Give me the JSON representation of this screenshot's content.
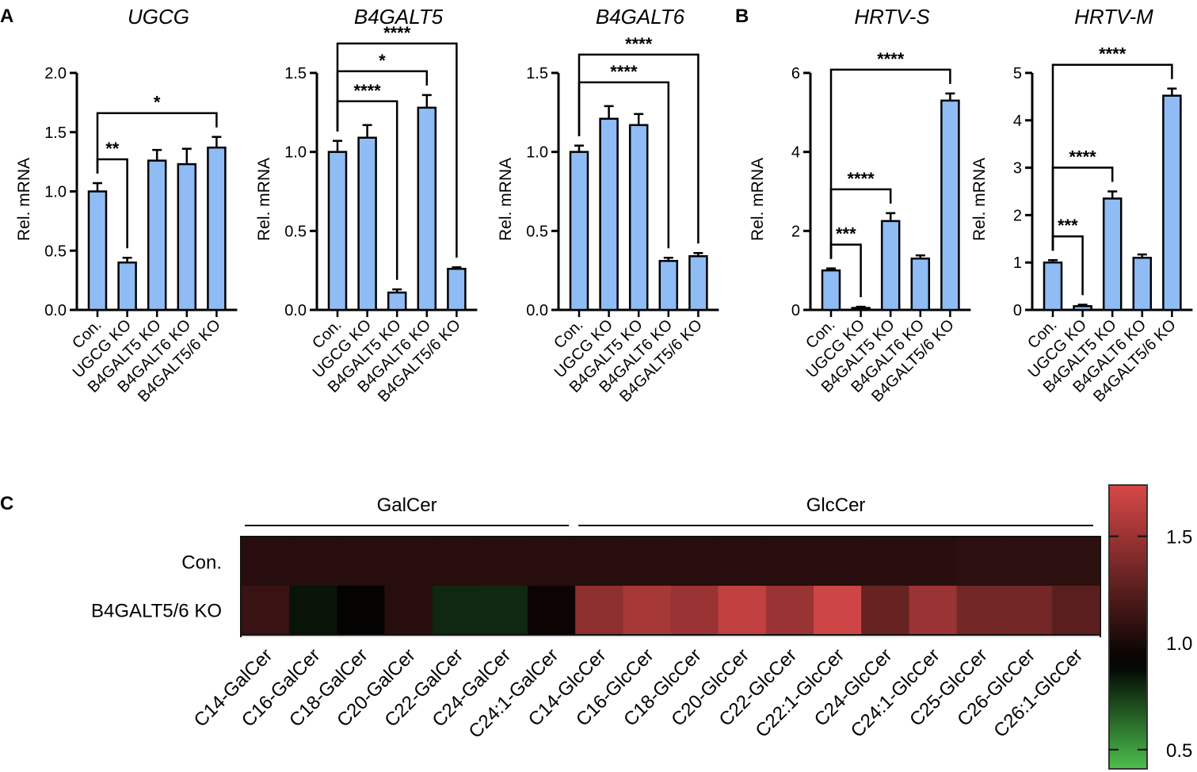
{
  "panels": [
    "A",
    "B",
    "C"
  ],
  "chart_data": [
    {
      "type": "bar",
      "title": "UGCG",
      "ylabel": "Rel. mRNA",
      "ylim": [
        0,
        2.0
      ],
      "yticks": [
        "0.0",
        "0.5",
        "1.0",
        "1.5",
        "2.0"
      ],
      "categories": [
        "Con.",
        "UGCG KO",
        "B4GALT5 KO",
        "B4GALT6 KO",
        "B4GALT5/6 KO"
      ],
      "values": [
        1.0,
        0.4,
        1.26,
        1.23,
        1.37
      ],
      "errors": [
        0.07,
        0.04,
        0.09,
        0.13,
        0.09
      ],
      "significance": [
        {
          "from": 0,
          "to": 1,
          "label": "**"
        },
        {
          "from": 0,
          "to": 4,
          "label": "*"
        }
      ],
      "bar_color": "#8fbcf5"
    },
    {
      "type": "bar",
      "title": "B4GALT5",
      "ylabel": "Rel. mRNA",
      "ylim": [
        0,
        1.5
      ],
      "yticks": [
        "0.0",
        "0.5",
        "1.0",
        "1.5"
      ],
      "categories": [
        "Con.",
        "UGCG KO",
        "B4GALT5 KO",
        "B4GALT6 KO",
        "B4GALT5/6 KO"
      ],
      "values": [
        1.0,
        1.09,
        0.11,
        1.28,
        0.26
      ],
      "errors": [
        0.07,
        0.08,
        0.02,
        0.08,
        0.01
      ],
      "significance": [
        {
          "from": 0,
          "to": 2,
          "label": "****"
        },
        {
          "from": 0,
          "to": 3,
          "label": "*"
        },
        {
          "from": 0,
          "to": 4,
          "label": "****"
        }
      ],
      "bar_color": "#8fbcf5"
    },
    {
      "type": "bar",
      "title": "B4GALT6",
      "ylabel": "Rel. mRNA",
      "ylim": [
        0,
        1.5
      ],
      "yticks": [
        "0.0",
        "0.5",
        "1.0",
        "1.5"
      ],
      "categories": [
        "Con.",
        "UGCG KO",
        "B4GALT5 KO",
        "B4GALT6 KO",
        "B4GALT5/6 KO"
      ],
      "values": [
        1.0,
        1.21,
        1.17,
        0.31,
        0.34
      ],
      "errors": [
        0.04,
        0.08,
        0.07,
        0.02,
        0.02
      ],
      "significance": [
        {
          "from": 0,
          "to": 3,
          "label": "****"
        },
        {
          "from": 0,
          "to": 4,
          "label": "****"
        }
      ],
      "bar_color": "#8fbcf5"
    },
    {
      "type": "bar",
      "title": "HRTV-S",
      "ylabel": "Rel. mRNA",
      "ylim": [
        0,
        6
      ],
      "yticks": [
        "0",
        "2",
        "4",
        "6"
      ],
      "categories": [
        "Con.",
        "UGCG KO",
        "B4GALT5 KO",
        "B4GALT6 KO",
        "B4GALT5/6 KO"
      ],
      "values": [
        1.0,
        0.05,
        2.25,
        1.3,
        5.3
      ],
      "errors": [
        0.05,
        0.03,
        0.2,
        0.08,
        0.18
      ],
      "significance": [
        {
          "from": 0,
          "to": 1,
          "label": "***"
        },
        {
          "from": 0,
          "to": 2,
          "label": "****"
        },
        {
          "from": 0,
          "to": 4,
          "label": "****"
        }
      ],
      "bar_color": "#8fbcf5"
    },
    {
      "type": "bar",
      "title": "HRTV-M",
      "ylabel": "Rel. mRNA",
      "ylim": [
        0,
        5
      ],
      "yticks": [
        "0",
        "1",
        "2",
        "3",
        "4",
        "5"
      ],
      "categories": [
        "Con.",
        "UGCG KO",
        "B4GALT5 KO",
        "B4GALT6 KO",
        "B4GALT5/6 KO"
      ],
      "values": [
        1.0,
        0.08,
        2.35,
        1.1,
        4.52
      ],
      "errors": [
        0.05,
        0.03,
        0.15,
        0.07,
        0.15
      ],
      "significance": [
        {
          "from": 0,
          "to": 1,
          "label": "***"
        },
        {
          "from": 0,
          "to": 2,
          "label": "****"
        },
        {
          "from": 0,
          "to": 4,
          "label": "****"
        }
      ],
      "bar_color": "#8fbcf5"
    },
    {
      "type": "heatmap",
      "rows": [
        "Con.",
        "B4GALT5/6 KO"
      ],
      "columns": [
        "C14-GalCer",
        "C16-GalCer",
        "C18-GalCer",
        "C20-GalCer",
        "C22-GalCer",
        "C24-GalCer",
        "C24:1-GalCer",
        "C14-GlcCer",
        "C16-GlcCer",
        "C18-GlcCer",
        "C20-GlcCer",
        "C22-GlcCer",
        "C22:1-GlcCer",
        "C24-GlcCer",
        "C24:1-GlcCer",
        "C25-GlcCer",
        "C26-GlcCer",
        "C26:1-GlcCer"
      ],
      "groups": [
        {
          "label": "GalCer",
          "from": 0,
          "to": 6
        },
        {
          "label": "GlcCer",
          "from": 7,
          "to": 17
        }
      ],
      "values": [
        [
          1.05,
          1.05,
          1.05,
          1.05,
          1.05,
          1.06,
          1.05,
          1.05,
          1.06,
          1.05,
          1.05,
          1.05,
          1.05,
          1.06,
          1.06,
          1.07,
          1.07,
          1.07
        ],
        [
          1.12,
          0.85,
          0.92,
          1.05,
          0.8,
          0.8,
          0.95,
          1.45,
          1.55,
          1.5,
          1.65,
          1.5,
          1.7,
          1.3,
          1.5,
          1.35,
          1.35,
          1.25
        ]
      ],
      "colorbar": {
        "ticks": [
          "0.5",
          "1.0",
          "1.5"
        ],
        "range": [
          0.41,
          1.74
        ],
        "colors": {
          "low": "#4cc04c",
          "mid": "#000000",
          "high": "#d84848"
        }
      }
    }
  ]
}
